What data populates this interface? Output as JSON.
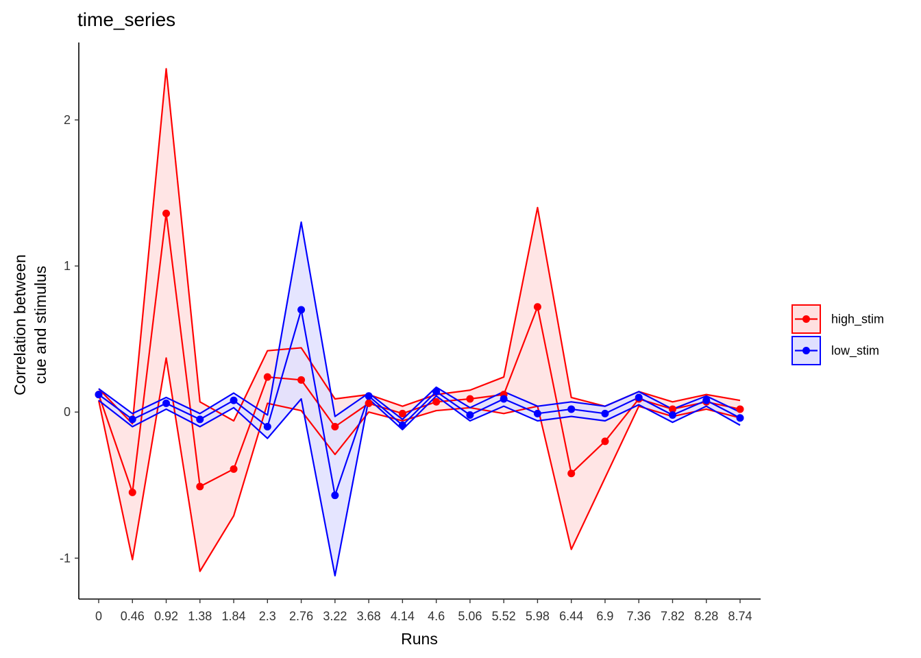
{
  "chart_data": {
    "type": "line",
    "title": "time_series",
    "xlabel": "Runs",
    "ylabel_lines": [
      "Correlation between",
      "cue and stimulus"
    ],
    "categories": [
      "0",
      "0.46",
      "0.92",
      "1.38",
      "1.84",
      "2.3",
      "2.76",
      "3.22",
      "3.68",
      "4.14",
      "4.6",
      "5.06",
      "5.52",
      "5.98",
      "6.44",
      "6.9",
      "7.36",
      "7.82",
      "8.28",
      "8.74"
    ],
    "y_ticks": [
      -1,
      0,
      1,
      2
    ],
    "ylim": [
      -1.28,
      2.53
    ],
    "grid": false,
    "legend_position": "right",
    "series": [
      {
        "name": "high_stim",
        "color": "#FF0000",
        "fill": "#FFE0E0",
        "mean": [
          0.12,
          -0.55,
          1.36,
          -0.51,
          -0.39,
          0.24,
          0.22,
          -0.1,
          0.06,
          -0.01,
          0.07,
          0.09,
          0.12,
          0.72,
          -0.42,
          -0.2,
          0.09,
          0.02,
          0.07,
          0.02
        ],
        "upper": [
          0.16,
          -0.08,
          2.35,
          0.07,
          -0.06,
          0.42,
          0.44,
          0.09,
          0.12,
          0.04,
          0.12,
          0.15,
          0.24,
          1.4,
          0.1,
          0.04,
          0.14,
          0.07,
          0.12,
          0.08
        ],
        "lower": [
          0.08,
          -1.01,
          0.37,
          -1.09,
          -0.71,
          0.06,
          0.01,
          -0.29,
          0.0,
          -0.06,
          0.01,
          0.03,
          -0.01,
          0.04,
          -0.94,
          -0.45,
          0.04,
          -0.03,
          0.02,
          -0.04
        ]
      },
      {
        "name": "low_stim",
        "color": "#0000FF",
        "fill": "#E0E0FF",
        "mean": [
          0.12,
          -0.05,
          0.06,
          -0.05,
          0.08,
          -0.1,
          0.7,
          -0.57,
          0.11,
          -0.09,
          0.14,
          -0.02,
          0.09,
          -0.01,
          0.02,
          -0.01,
          0.1,
          -0.02,
          0.08,
          -0.04
        ],
        "upper": [
          0.16,
          -0.01,
          0.1,
          -0.01,
          0.13,
          -0.02,
          1.3,
          -0.03,
          0.13,
          -0.05,
          0.17,
          0.03,
          0.14,
          0.04,
          0.07,
          0.04,
          0.14,
          0.02,
          0.11,
          0.0
        ],
        "lower": [
          0.08,
          -0.1,
          0.02,
          -0.1,
          0.03,
          -0.18,
          0.09,
          -1.12,
          0.09,
          -0.12,
          0.11,
          -0.06,
          0.04,
          -0.06,
          -0.03,
          -0.06,
          0.05,
          -0.07,
          0.04,
          -0.09
        ]
      }
    ]
  }
}
